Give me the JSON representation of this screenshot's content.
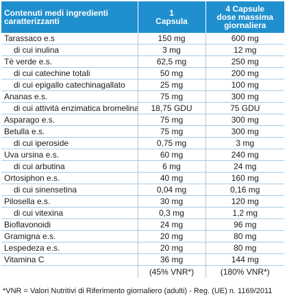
{
  "header": {
    "col1": [
      "Contenuti medi ingredienti",
      "caratterizzanti"
    ],
    "col2": [
      "1",
      "Capsula"
    ],
    "col3": [
      "4 Capsule",
      "dose massima",
      "giornaliera"
    ]
  },
  "rows": [
    {
      "name": "Tarassaco e.s",
      "sub": false,
      "v1": "150 mg",
      "v2": "600 mg"
    },
    {
      "name": "di cui inulina",
      "sub": true,
      "v1": "3 mg",
      "v2": "12 mg"
    },
    {
      "name": "Tè verde e.s.",
      "sub": false,
      "v1": "62,5 mg",
      "v2": "250 mg"
    },
    {
      "name": "di cui catechine totali",
      "sub": true,
      "v1": "50 mg",
      "v2": "200 mg"
    },
    {
      "name": "di cui epigallo catechinagallato",
      "sub": true,
      "v1": "25 mg",
      "v2": "100 mg"
    },
    {
      "name": "Ananas e.s.",
      "sub": false,
      "v1": "75 mg",
      "v2": "300 mg"
    },
    {
      "name": "di cui attività enzimatica bromelina",
      "sub": true,
      "v1": "18,75 GDU",
      "v2": "75 GDU"
    },
    {
      "name": "Asparago e.s.",
      "sub": false,
      "v1": "75 mg",
      "v2": "300 mg"
    },
    {
      "name": "Betulla e.s.",
      "sub": false,
      "v1": "75 mg",
      "v2": "300 mg"
    },
    {
      "name": "di cui iperoside",
      "sub": true,
      "v1": "0,75 mg",
      "v2": "3 mg"
    },
    {
      "name": "Uva ursina e.s.",
      "sub": false,
      "v1": "60 mg",
      "v2": "240 mg"
    },
    {
      "name": "di cui arbutina",
      "sub": true,
      "v1": "6 mg",
      "v2": "24 mg"
    },
    {
      "name": "Ortosiphon e.s.",
      "sub": false,
      "v1": "40 mg",
      "v2": "160 mg"
    },
    {
      "name": "di cui sinensetina",
      "sub": true,
      "v1": "0,04 mg",
      "v2": "0,16 mg"
    },
    {
      "name": "Pilosella e.s.",
      "sub": false,
      "v1": "30 mg",
      "v2": "120 mg"
    },
    {
      "name": "di cui vitexina",
      "sub": true,
      "v1": "0,3 mg",
      "v2": "1,2 mg"
    },
    {
      "name": "Bioflavonoidi",
      "sub": false,
      "v1": "24 mg",
      "v2": "96 mg"
    },
    {
      "name": "Gramigna e.s.",
      "sub": false,
      "v1": "20 mg",
      "v2": "80 mg"
    },
    {
      "name": "Lespedeza e.s.",
      "sub": false,
      "v1": "20 mg",
      "v2": "80 mg"
    },
    {
      "name": "Vitamina C",
      "sub": false,
      "v1": "36 mg",
      "v2": "144 mg"
    }
  ],
  "vnr": {
    "v1": "(45% VNR*)",
    "v2": "(180% VNR*)"
  },
  "footnote": "*VNR = Valori Nutritivi di Riferimento giornaliero (adulti) - Reg. (UE) n. 1169/2011"
}
